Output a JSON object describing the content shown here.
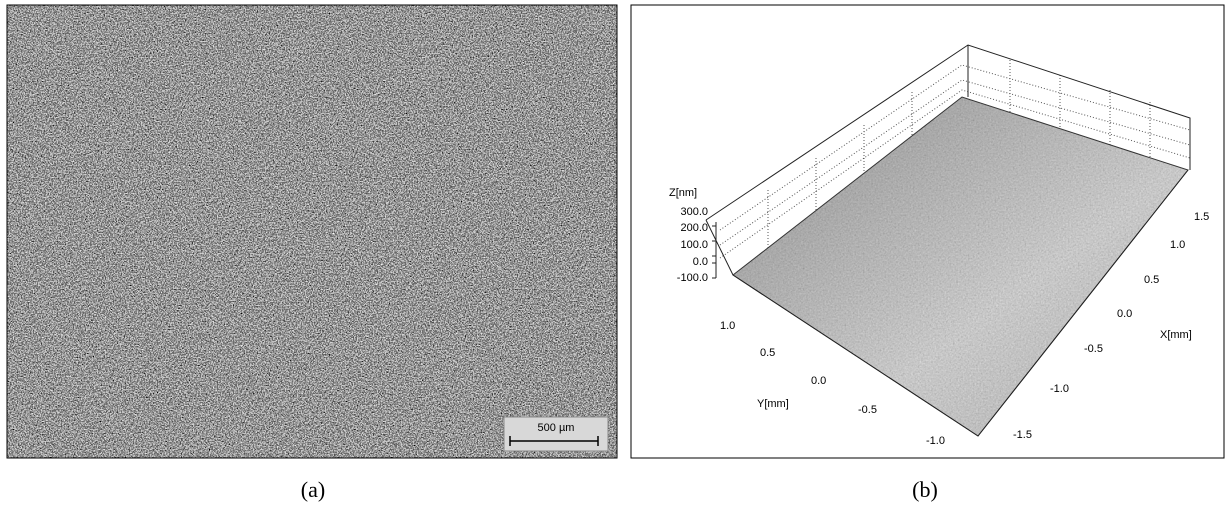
{
  "panels": [
    {
      "caption": "(a)",
      "scale_bar": "500 µm"
    },
    {
      "caption": "(b)",
      "z_axis": {
        "label": "Z[nm]",
        "ticks": [
          "300.0",
          "200.0",
          "100.0",
          "0.0",
          "-100.0"
        ]
      },
      "x_axis": {
        "label": "X[mm]",
        "ticks": [
          "1.5",
          "1.0",
          "0.5",
          "0.0",
          "-0.5",
          "-1.0",
          "-1.5"
        ]
      },
      "y_axis": {
        "label": "Y[mm]",
        "ticks": [
          "1.0",
          "0.5",
          "0.0",
          "-0.5",
          "-1.0"
        ]
      }
    }
  ]
}
